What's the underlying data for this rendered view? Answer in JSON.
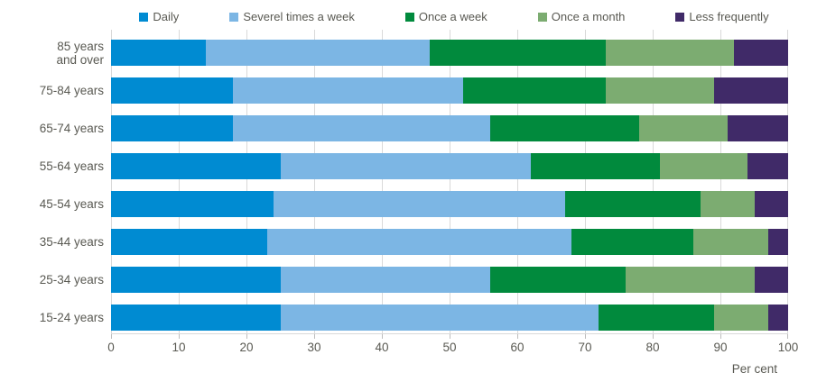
{
  "chart_data": {
    "type": "bar",
    "orientation": "horizontal",
    "stacked": true,
    "title": "",
    "xlabel": "Per cent",
    "ylabel": "",
    "xlim": [
      0,
      100
    ],
    "xticks": [
      0,
      10,
      20,
      30,
      40,
      50,
      60,
      70,
      80,
      90,
      100
    ],
    "grid": "vertical",
    "legend_position": "top",
    "categories": [
      "85 years and over",
      "75-84 years",
      "65-74 years",
      "55-64 years",
      "45-54 years",
      "35-44 years",
      "25-34 years",
      "15-24 years"
    ],
    "series": [
      {
        "name": "Daily",
        "color": "#008BD2",
        "values": [
          14,
          18,
          18,
          25,
          24,
          23,
          25,
          25
        ]
      },
      {
        "name": "Severel times a week",
        "color": "#7CB6E4",
        "values": [
          33,
          34,
          38,
          37,
          43,
          45,
          31,
          47
        ]
      },
      {
        "name": "Once a week",
        "color": "#018A3D",
        "values": [
          26,
          21,
          22,
          19,
          20,
          18,
          20,
          17
        ]
      },
      {
        "name": "Once a month",
        "color": "#7CAC71",
        "values": [
          19,
          16,
          13,
          13,
          8,
          11,
          19,
          8
        ]
      },
      {
        "name": "Less frequently",
        "color": "#402A68",
        "values": [
          8,
          11,
          9,
          6,
          5,
          3,
          5,
          3
        ]
      }
    ]
  },
  "layout_colors": {
    "gridline": "#d9d9d9",
    "tick": "#bdbdbd",
    "text": "#595952",
    "background": "#ffffff"
  }
}
